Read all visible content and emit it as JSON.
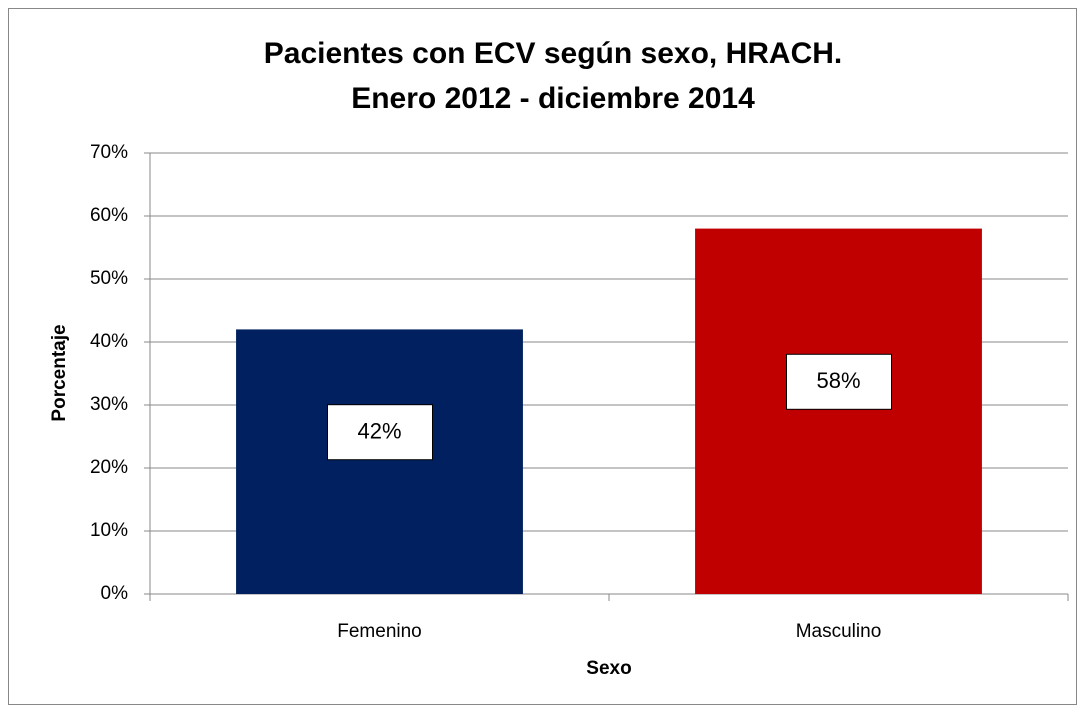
{
  "chart_data": {
    "type": "bar",
    "title": [
      "Pacientes con ECV según sexo, HRACH.",
      "Enero 2012 - diciembre 2014"
    ],
    "x_label": "Sexo",
    "y_label": "Porcentaje",
    "categories": [
      "Femenino",
      "Masculino"
    ],
    "values": [
      42,
      58
    ],
    "value_labels": [
      "42%",
      "58%"
    ],
    "colors": [
      "#002060",
      "#c00000"
    ],
    "ylim": [
      0,
      70
    ],
    "yticks": [
      {
        "value": 0,
        "label": "0%"
      },
      {
        "value": 10,
        "label": "10%"
      },
      {
        "value": 20,
        "label": "20%"
      },
      {
        "value": 30,
        "label": "30%"
      },
      {
        "value": 40,
        "label": "40%"
      },
      {
        "value": 50,
        "label": "50%"
      },
      {
        "value": 60,
        "label": "60%"
      },
      {
        "value": 70,
        "label": "70%"
      }
    ],
    "grid": true
  }
}
